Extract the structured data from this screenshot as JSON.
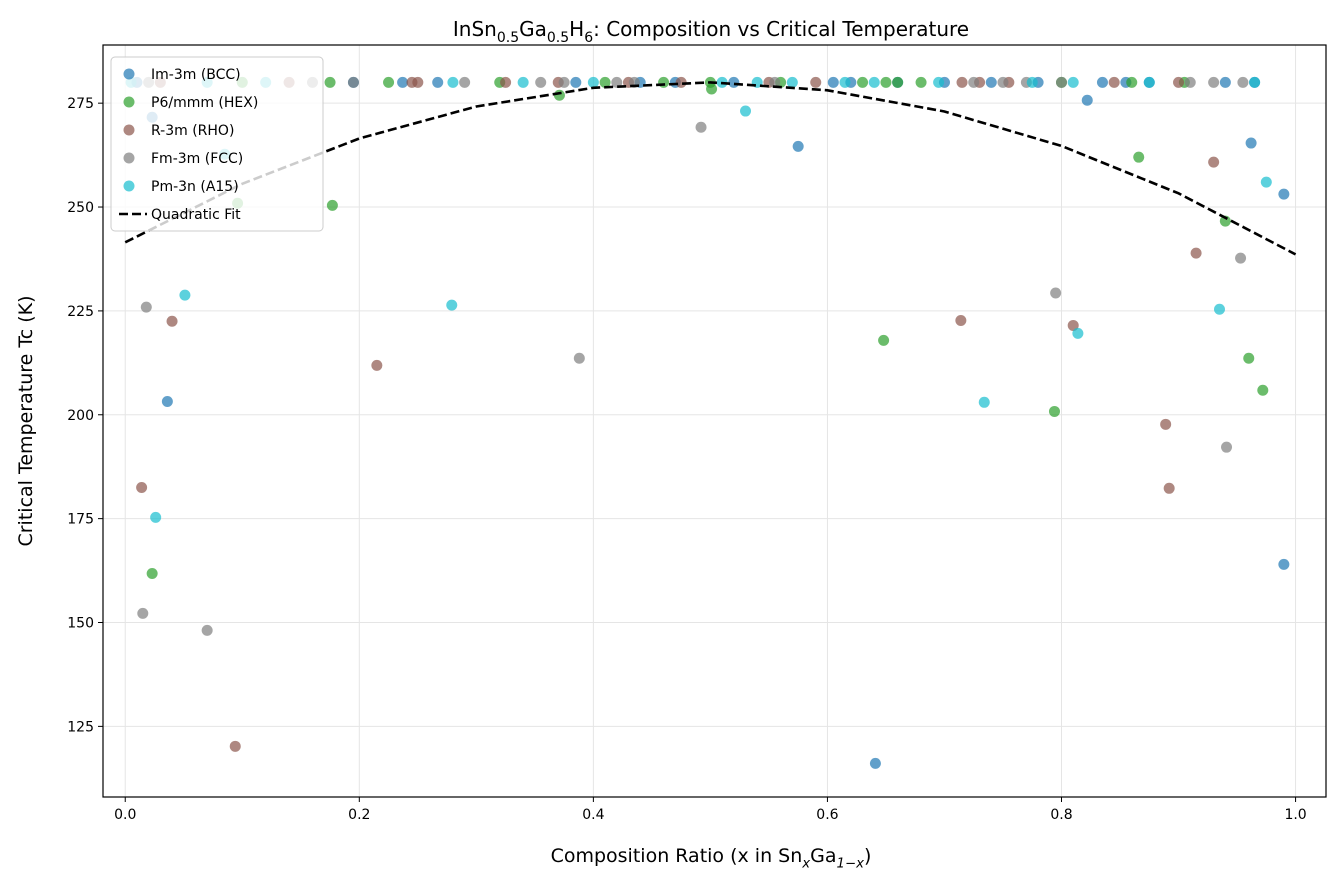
{
  "chart_data": {
    "type": "scatter",
    "title_parts": [
      {
        "text": "InSn"
      },
      {
        "text": "0.5",
        "sub": true
      },
      {
        "text": "Ga"
      },
      {
        "text": "0.5",
        "sub": true
      },
      {
        "text": "H"
      },
      {
        "text": "6",
        "sub": true
      },
      {
        "text": ": Composition vs Critical Temperature"
      }
    ],
    "xlabel_parts": [
      {
        "text": "Composition Ratio (x in Sn"
      },
      {
        "text": "x",
        "sub": true,
        "italic": true
      },
      {
        "text": "Ga"
      },
      {
        "text": "1−x",
        "sub": true,
        "italic": true
      },
      {
        "text": ")"
      }
    ],
    "ylabel": "Critical Temperature Tc (K)",
    "xlim": [
      -0.019,
      1.026
    ],
    "ylim": [
      108,
      289
    ],
    "xticks": [
      {
        "value": 0,
        "label": "0.0"
      },
      0.2,
      0.4,
      0.6,
      0.8,
      {
        "value": 1,
        "label": "1.0"
      }
    ],
    "yticks": [
      125,
      150,
      175,
      200,
      225,
      250,
      275
    ],
    "grid": true,
    "legend": "upper left",
    "series": [
      {
        "name": "Im-3m (BCC)",
        "color": "#1f77b4",
        "x": [
          0.023,
          0.036,
          0.575,
          0.641,
          0.822,
          0.962,
          0.99,
          0.99,
          0.01,
          0.195,
          0.237,
          0.267,
          0.385,
          0.44,
          0.47,
          0.52,
          0.605,
          0.62,
          0.66,
          0.7,
          0.74,
          0.78,
          0.835,
          0.855,
          0.875,
          0.94,
          0.965
        ],
        "values": [
          271.6,
          203.2,
          264.6,
          116.1,
          275.7,
          265.4,
          253.1,
          164,
          280,
          280,
          280,
          280,
          280,
          280,
          280,
          280,
          280,
          280,
          280,
          280,
          280,
          280,
          280,
          280,
          280,
          280,
          280
        ]
      },
      {
        "name": "P6/mmm (HEX)",
        "color": "#2ca02c",
        "x": [
          0.023,
          0.096,
          0.177,
          0.371,
          0.501,
          0.648,
          0.794,
          0.866,
          0.94,
          0.96,
          0.972,
          0.1,
          0.175,
          0.225,
          0.32,
          0.41,
          0.46,
          0.5,
          0.56,
          0.63,
          0.65,
          0.66,
          0.68,
          0.8,
          0.86,
          0.905
        ],
        "values": [
          161.8,
          250.9,
          250.4,
          276.9,
          278.4,
          217.9,
          200.8,
          262,
          246.6,
          213.6,
          205.9,
          280,
          280,
          280,
          280,
          280,
          280,
          280,
          280,
          280,
          280,
          280,
          280,
          280,
          280,
          280
        ]
      },
      {
        "name": "R-3m (RHO)",
        "color": "#8c564b",
        "x": [
          0.014,
          0.04,
          0.094,
          0.215,
          0.714,
          0.81,
          0.889,
          0.892,
          0.915,
          0.93,
          0.03,
          0.14,
          0.245,
          0.25,
          0.325,
          0.37,
          0.43,
          0.475,
          0.55,
          0.59,
          0.715,
          0.73,
          0.755,
          0.845,
          0.9
        ],
        "values": [
          182.5,
          222.5,
          120.2,
          211.9,
          222.7,
          221.5,
          197.7,
          182.3,
          238.9,
          260.8,
          280,
          280,
          280,
          280,
          280,
          280,
          280,
          280,
          280,
          280,
          280,
          280,
          280,
          280,
          280
        ]
      },
      {
        "name": "Fm-3m (FCC)",
        "color": "#7f7f7f",
        "x": [
          0.018,
          0.015,
          0.07,
          0.388,
          0.492,
          0.795,
          0.941,
          0.953,
          0.02,
          0.16,
          0.195,
          0.29,
          0.355,
          0.375,
          0.42,
          0.435,
          0.555,
          0.725,
          0.75,
          0.77,
          0.8,
          0.91,
          0.93,
          0.955
        ],
        "values": [
          225.9,
          152.2,
          148.1,
          213.6,
          269.2,
          229.3,
          192.2,
          237.7,
          280,
          280,
          280,
          280,
          280,
          280,
          280,
          280,
          280,
          280,
          280,
          280,
          280,
          280,
          280,
          280
        ]
      },
      {
        "name": "Pm-3n (A15)",
        "color": "#17becf",
        "x": [
          0.026,
          0.051,
          0.085,
          0.279,
          0.53,
          0.734,
          0.814,
          0.935,
          0.975,
          0.005,
          0.07,
          0.12,
          0.28,
          0.34,
          0.4,
          0.51,
          0.54,
          0.57,
          0.615,
          0.64,
          0.695,
          0.775,
          0.81,
          0.875,
          0.965
        ],
        "values": [
          175.3,
          228.8,
          262.7,
          226.4,
          273.1,
          203,
          219.6,
          225.4,
          256,
          280,
          280,
          280,
          280,
          280,
          280,
          280,
          280,
          280,
          280,
          280,
          280,
          280,
          280,
          280,
          280
        ]
      }
    ],
    "fit": {
      "name": "Quadratic Fit",
      "color": "#000000",
      "x": [
        0,
        0.1,
        0.2,
        0.3,
        0.4,
        0.5,
        0.6,
        0.7,
        0.8,
        0.9,
        1
      ],
      "values": [
        241.5,
        255.6,
        266.5,
        274.2,
        278.7,
        280,
        278.1,
        273,
        264.7,
        253.3,
        238.6
      ]
    }
  }
}
